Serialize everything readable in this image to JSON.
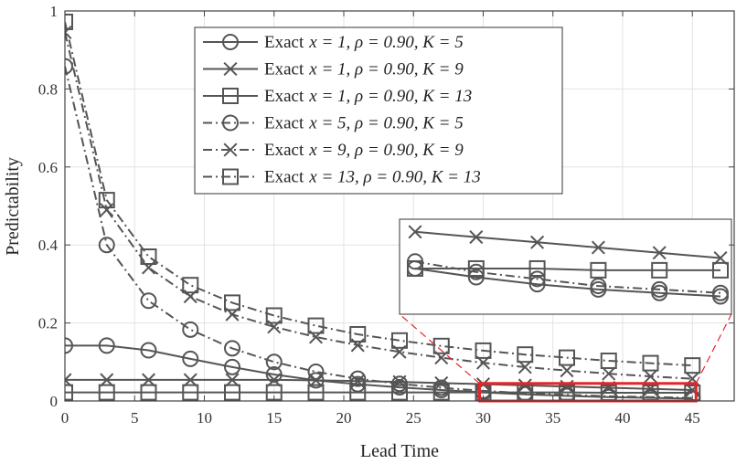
{
  "chart_data": {
    "type": "line",
    "xlabel": "Lead Time",
    "ylabel": "Predictability",
    "xlim": [
      0,
      48
    ],
    "ylim": [
      0,
      1
    ],
    "xticks": [
      0,
      5,
      10,
      15,
      20,
      25,
      30,
      35,
      40,
      45
    ],
    "yticks": [
      0,
      0.2,
      0.4,
      0.6,
      0.8,
      1
    ],
    "ytick_labels": [
      "0",
      "0.2",
      "0.4",
      "0.6",
      "0.8",
      "1"
    ],
    "grid": true,
    "legend_position": "top-center",
    "x": [
      0,
      3,
      6,
      9,
      12,
      15,
      18,
      21,
      24,
      27,
      30,
      33,
      36,
      39,
      42,
      45
    ],
    "series": [
      {
        "name": "Exact x = 1, ρ = 0.90, K = 5",
        "legend_prefix": "Exact",
        "legend_math": "x = 1, ρ = 0.90, K = 5",
        "marker": "circle",
        "dash": "solid",
        "values": [
          0.142,
          0.142,
          0.13,
          0.108,
          0.087,
          0.068,
          0.053,
          0.043,
          0.035,
          0.028,
          0.022,
          0.017,
          0.013,
          0.01,
          0.008,
          0.006
        ]
      },
      {
        "name": "Exact x = 1, ρ = 0.90, K = 9",
        "legend_prefix": "Exact",
        "legend_math": "x = 1, ρ = 0.90, K = 9",
        "marker": "x",
        "dash": "solid",
        "values": [
          0.054,
          0.054,
          0.054,
          0.054,
          0.054,
          0.054,
          0.053,
          0.051,
          0.049,
          0.046,
          0.043,
          0.04,
          0.037,
          0.034,
          0.031,
          0.028
        ]
      },
      {
        "name": "Exact x = 1, ρ = 0.90, K = 13",
        "legend_prefix": "Exact",
        "legend_math": "x = 1, ρ = 0.90, K = 13",
        "marker": "square",
        "dash": "solid",
        "values": [
          0.022,
          0.022,
          0.022,
          0.022,
          0.022,
          0.022,
          0.022,
          0.022,
          0.022,
          0.022,
          0.022,
          0.022,
          0.022,
          0.021,
          0.021,
          0.021
        ]
      },
      {
        "name": "Exact x = 5, ρ = 0.90, K = 5",
        "legend_prefix": "Exact",
        "legend_math": "x = 5, ρ = 0.90, K = 5",
        "marker": "circle",
        "dash": "dashdot",
        "values": [
          0.858,
          0.4,
          0.257,
          0.183,
          0.135,
          0.1,
          0.075,
          0.057,
          0.044,
          0.034,
          0.026,
          0.02,
          0.016,
          0.012,
          0.01,
          0.008
        ]
      },
      {
        "name": "Exact x = 9, ρ = 0.90, K = 9",
        "legend_prefix": "Exact",
        "legend_math": "x = 9, ρ = 0.90, K = 9",
        "marker": "x",
        "dash": "dashdot",
        "values": [
          0.945,
          0.49,
          0.342,
          0.268,
          0.222,
          0.19,
          0.164,
          0.143,
          0.126,
          0.111,
          0.098,
          0.087,
          0.078,
          0.07,
          0.063,
          0.057
        ]
      },
      {
        "name": "Exact x = 13, ρ = 0.90, K = 13",
        "legend_prefix": "Exact",
        "legend_math": "x = 13, ρ = 0.90, K = 13",
        "marker": "square",
        "dash": "dashdot",
        "values": [
          0.972,
          0.515,
          0.37,
          0.297,
          0.252,
          0.219,
          0.193,
          0.171,
          0.155,
          0.141,
          0.129,
          0.119,
          0.111,
          0.103,
          0.097,
          0.091
        ]
      }
    ],
    "inset": {
      "x_range": [
        30,
        45
      ],
      "y_range": [
        0,
        0.045
      ],
      "highlight_color": "#e8232a"
    }
  }
}
